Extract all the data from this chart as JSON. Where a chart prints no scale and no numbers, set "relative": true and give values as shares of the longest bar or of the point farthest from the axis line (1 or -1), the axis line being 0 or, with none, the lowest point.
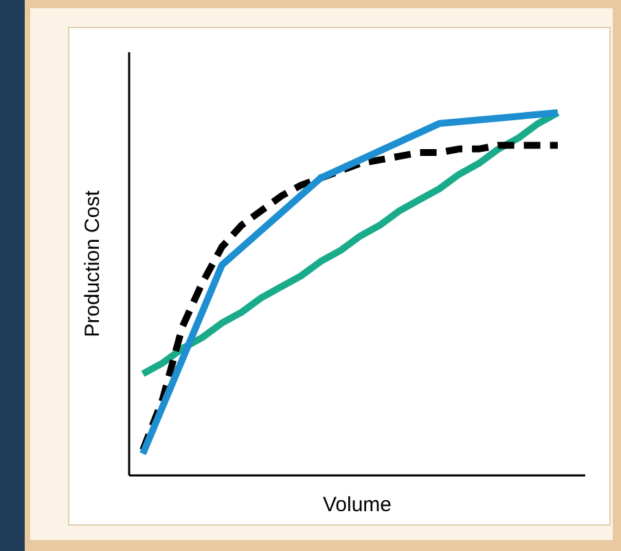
{
  "chart_data": {
    "type": "line",
    "relative": true,
    "xlabel": "Volume",
    "ylabel": "Production Cost",
    "categories": [
      null,
      null,
      null,
      null,
      null,
      null,
      null,
      null,
      null,
      null,
      null,
      null,
      null,
      null,
      null,
      null,
      null,
      null,
      null,
      null,
      null,
      null
    ],
    "series": [
      {
        "color": "#1aab8a",
        "line_style": "solid",
        "values": [
          0.28,
          0.31,
          0.35,
          0.38,
          0.42,
          0.45,
          0.49,
          0.52,
          0.55,
          0.59,
          0.62,
          0.66,
          0.69,
          0.73,
          0.76,
          0.79,
          0.83,
          0.86,
          0.9,
          0.93,
          0.97,
          1.0
        ]
      },
      {
        "color": "#000000",
        "line_style": "dashed",
        "values": [
          0.07,
          0.21,
          0.41,
          0.53,
          0.63,
          0.69,
          0.73,
          0.77,
          0.8,
          0.82,
          0.84,
          0.86,
          0.87,
          0.88,
          0.89,
          0.89,
          0.9,
          0.9,
          0.91,
          0.91,
          0.91,
          0.91
        ]
      },
      {
        "color": "#1e8fd0",
        "line_style": "solid",
        "values": [
          0.06,
          null,
          null,
          null,
          0.58,
          null,
          null,
          null,
          null,
          0.82,
          null,
          null,
          null,
          null,
          null,
          0.97,
          null,
          null,
          null,
          null,
          null,
          1.0
        ]
      }
    ]
  }
}
